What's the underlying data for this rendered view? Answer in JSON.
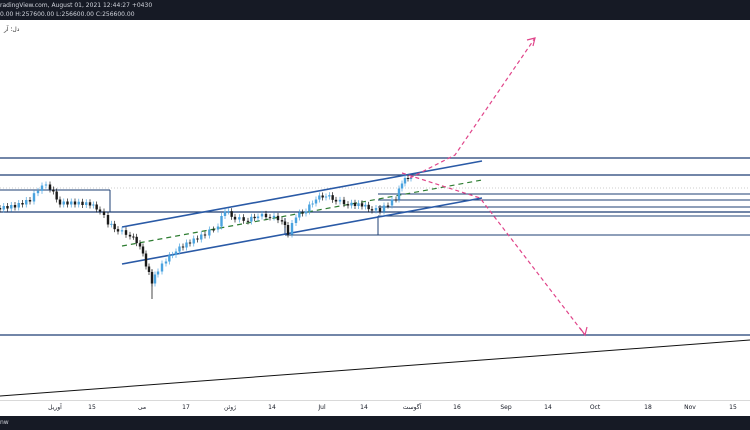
{
  "header": {
    "line1": "radingView.com, August 01, 2021 12:44:27 +0430",
    "line2": "0.00 H:257600.00 L:256600.00 C:256600.00"
  },
  "symbol_label": "دل؛ آر",
  "footer": {
    "text": "nw"
  },
  "time_axis": [
    {
      "label": "آوریل"
    },
    {
      "label": "15"
    },
    {
      "label": "می"
    },
    {
      "label": "17"
    },
    {
      "label": "ژوئن"
    },
    {
      "label": "14"
    },
    {
      "label": "Jul"
    },
    {
      "label": "14"
    },
    {
      "label": "آگوست"
    },
    {
      "label": "16"
    },
    {
      "label": "Sep"
    },
    {
      "label": "14"
    },
    {
      "label": "Oct"
    },
    {
      "label": "18"
    },
    {
      "label": "Nov"
    },
    {
      "label": "15"
    }
  ],
  "colors": {
    "header_bg": "#161a25",
    "channel_line": "#2a5aa6",
    "level_line": "#1e3f73",
    "candle_up": "#4aa3df",
    "candle_down": "#1a1a1a",
    "projection": "#e0458a",
    "dashed_mid": "#2e7d32"
  }
}
